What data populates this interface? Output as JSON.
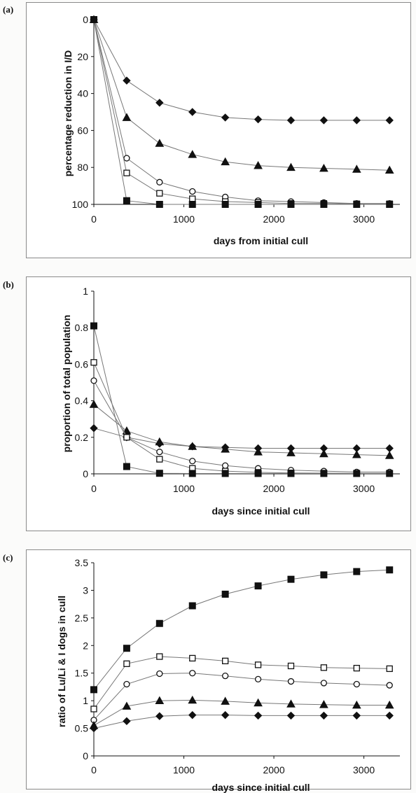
{
  "panels": [
    {
      "letter": "(a)"
    },
    {
      "letter": "(b)"
    },
    {
      "letter": "(c)"
    }
  ],
  "chart_data": [
    {
      "type": "line",
      "xlabel": "days from initial cull",
      "ylabel": "percentage reduction in I/D",
      "xlim": [
        0,
        3400
      ],
      "ylim": [
        0,
        100
      ],
      "y_inverted": true,
      "xticks": [
        "0",
        "1000",
        "2000",
        "3000"
      ],
      "yticks": [
        "0",
        "20",
        "40",
        "60",
        "80",
        "100"
      ],
      "grid": false,
      "x": [
        0,
        365,
        730,
        1095,
        1460,
        1825,
        2190,
        2555,
        2920,
        3285
      ],
      "series": [
        {
          "marker": "diamond-filled",
          "values": [
            0,
            33,
            45,
            50,
            53,
            54,
            54.5,
            54.5,
            54.5,
            54.5
          ]
        },
        {
          "marker": "triangle-filled",
          "values": [
            0,
            53,
            67,
            73,
            77,
            79,
            80,
            80.5,
            81,
            81.5
          ]
        },
        {
          "marker": "circle-open",
          "values": [
            0,
            75,
            88,
            93,
            96,
            98,
            98.5,
            99,
            99.5,
            99.5
          ]
        },
        {
          "marker": "square-open",
          "values": [
            0,
            83,
            94,
            97,
            98.5,
            99,
            99.5,
            99.5,
            99.7,
            99.7
          ]
        },
        {
          "marker": "square-filled",
          "values": [
            0,
            98,
            100,
            100,
            100,
            100,
            100,
            100,
            100,
            100
          ]
        }
      ]
    },
    {
      "type": "line",
      "xlabel": "days since initial cull",
      "ylabel": "proportion of total population",
      "xlim": [
        0,
        3400
      ],
      "ylim": [
        0,
        1
      ],
      "xticks": [
        "0",
        "1000",
        "2000",
        "3000"
      ],
      "yticks": [
        "0",
        "0.2",
        "0.4",
        "0.6",
        "0.8",
        "1"
      ],
      "grid": false,
      "x": [
        0,
        365,
        730,
        1095,
        1460,
        1825,
        2190,
        2555,
        2920,
        3285
      ],
      "series": [
        {
          "marker": "diamond-filled",
          "values": [
            0.25,
            0.2,
            0.165,
            0.15,
            0.145,
            0.14,
            0.14,
            0.14,
            0.14,
            0.14
          ]
        },
        {
          "marker": "triangle-filled",
          "values": [
            0.38,
            0.235,
            0.175,
            0.15,
            0.135,
            0.12,
            0.115,
            0.11,
            0.105,
            0.1
          ]
        },
        {
          "marker": "circle-open",
          "values": [
            0.51,
            0.2,
            0.12,
            0.07,
            0.045,
            0.03,
            0.02,
            0.015,
            0.01,
            0.01
          ]
        },
        {
          "marker": "square-open",
          "values": [
            0.61,
            0.2,
            0.08,
            0.03,
            0.015,
            0.008,
            0.005,
            0.004,
            0.003,
            0.003
          ]
        },
        {
          "marker": "square-filled",
          "values": [
            0.81,
            0.04,
            0.003,
            0.002,
            0.002,
            0.002,
            0.002,
            0.002,
            0.002,
            0.002
          ]
        }
      ]
    },
    {
      "type": "line",
      "xlabel": "days since initial cull",
      "ylabel": "ratio of Lu/Li & I dogs in cull",
      "xlim": [
        0,
        3400
      ],
      "ylim": [
        0,
        3.5
      ],
      "xticks": [
        "0",
        "1000",
        "2000",
        "3000"
      ],
      "yticks": [
        "0",
        "0.5",
        "1",
        "1.5",
        "2",
        "2.5",
        "3",
        "3.5"
      ],
      "grid": false,
      "x": [
        0,
        365,
        730,
        1095,
        1460,
        1825,
        2190,
        2555,
        2920,
        3285
      ],
      "series": [
        {
          "marker": "square-filled",
          "values": [
            1.2,
            1.95,
            2.4,
            2.72,
            2.93,
            3.08,
            3.2,
            3.28,
            3.34,
            3.37
          ]
        },
        {
          "marker": "square-open",
          "values": [
            0.85,
            1.67,
            1.8,
            1.77,
            1.72,
            1.65,
            1.63,
            1.6,
            1.59,
            1.58
          ]
        },
        {
          "marker": "circle-open",
          "values": [
            0.65,
            1.3,
            1.49,
            1.5,
            1.45,
            1.39,
            1.35,
            1.32,
            1.3,
            1.28
          ]
        },
        {
          "marker": "triangle-filled",
          "values": [
            0.55,
            0.9,
            1.0,
            1.01,
            0.99,
            0.96,
            0.94,
            0.93,
            0.92,
            0.92
          ]
        },
        {
          "marker": "diamond-filled",
          "values": [
            0.5,
            0.63,
            0.72,
            0.74,
            0.74,
            0.73,
            0.73,
            0.73,
            0.73,
            0.73
          ]
        }
      ]
    }
  ]
}
